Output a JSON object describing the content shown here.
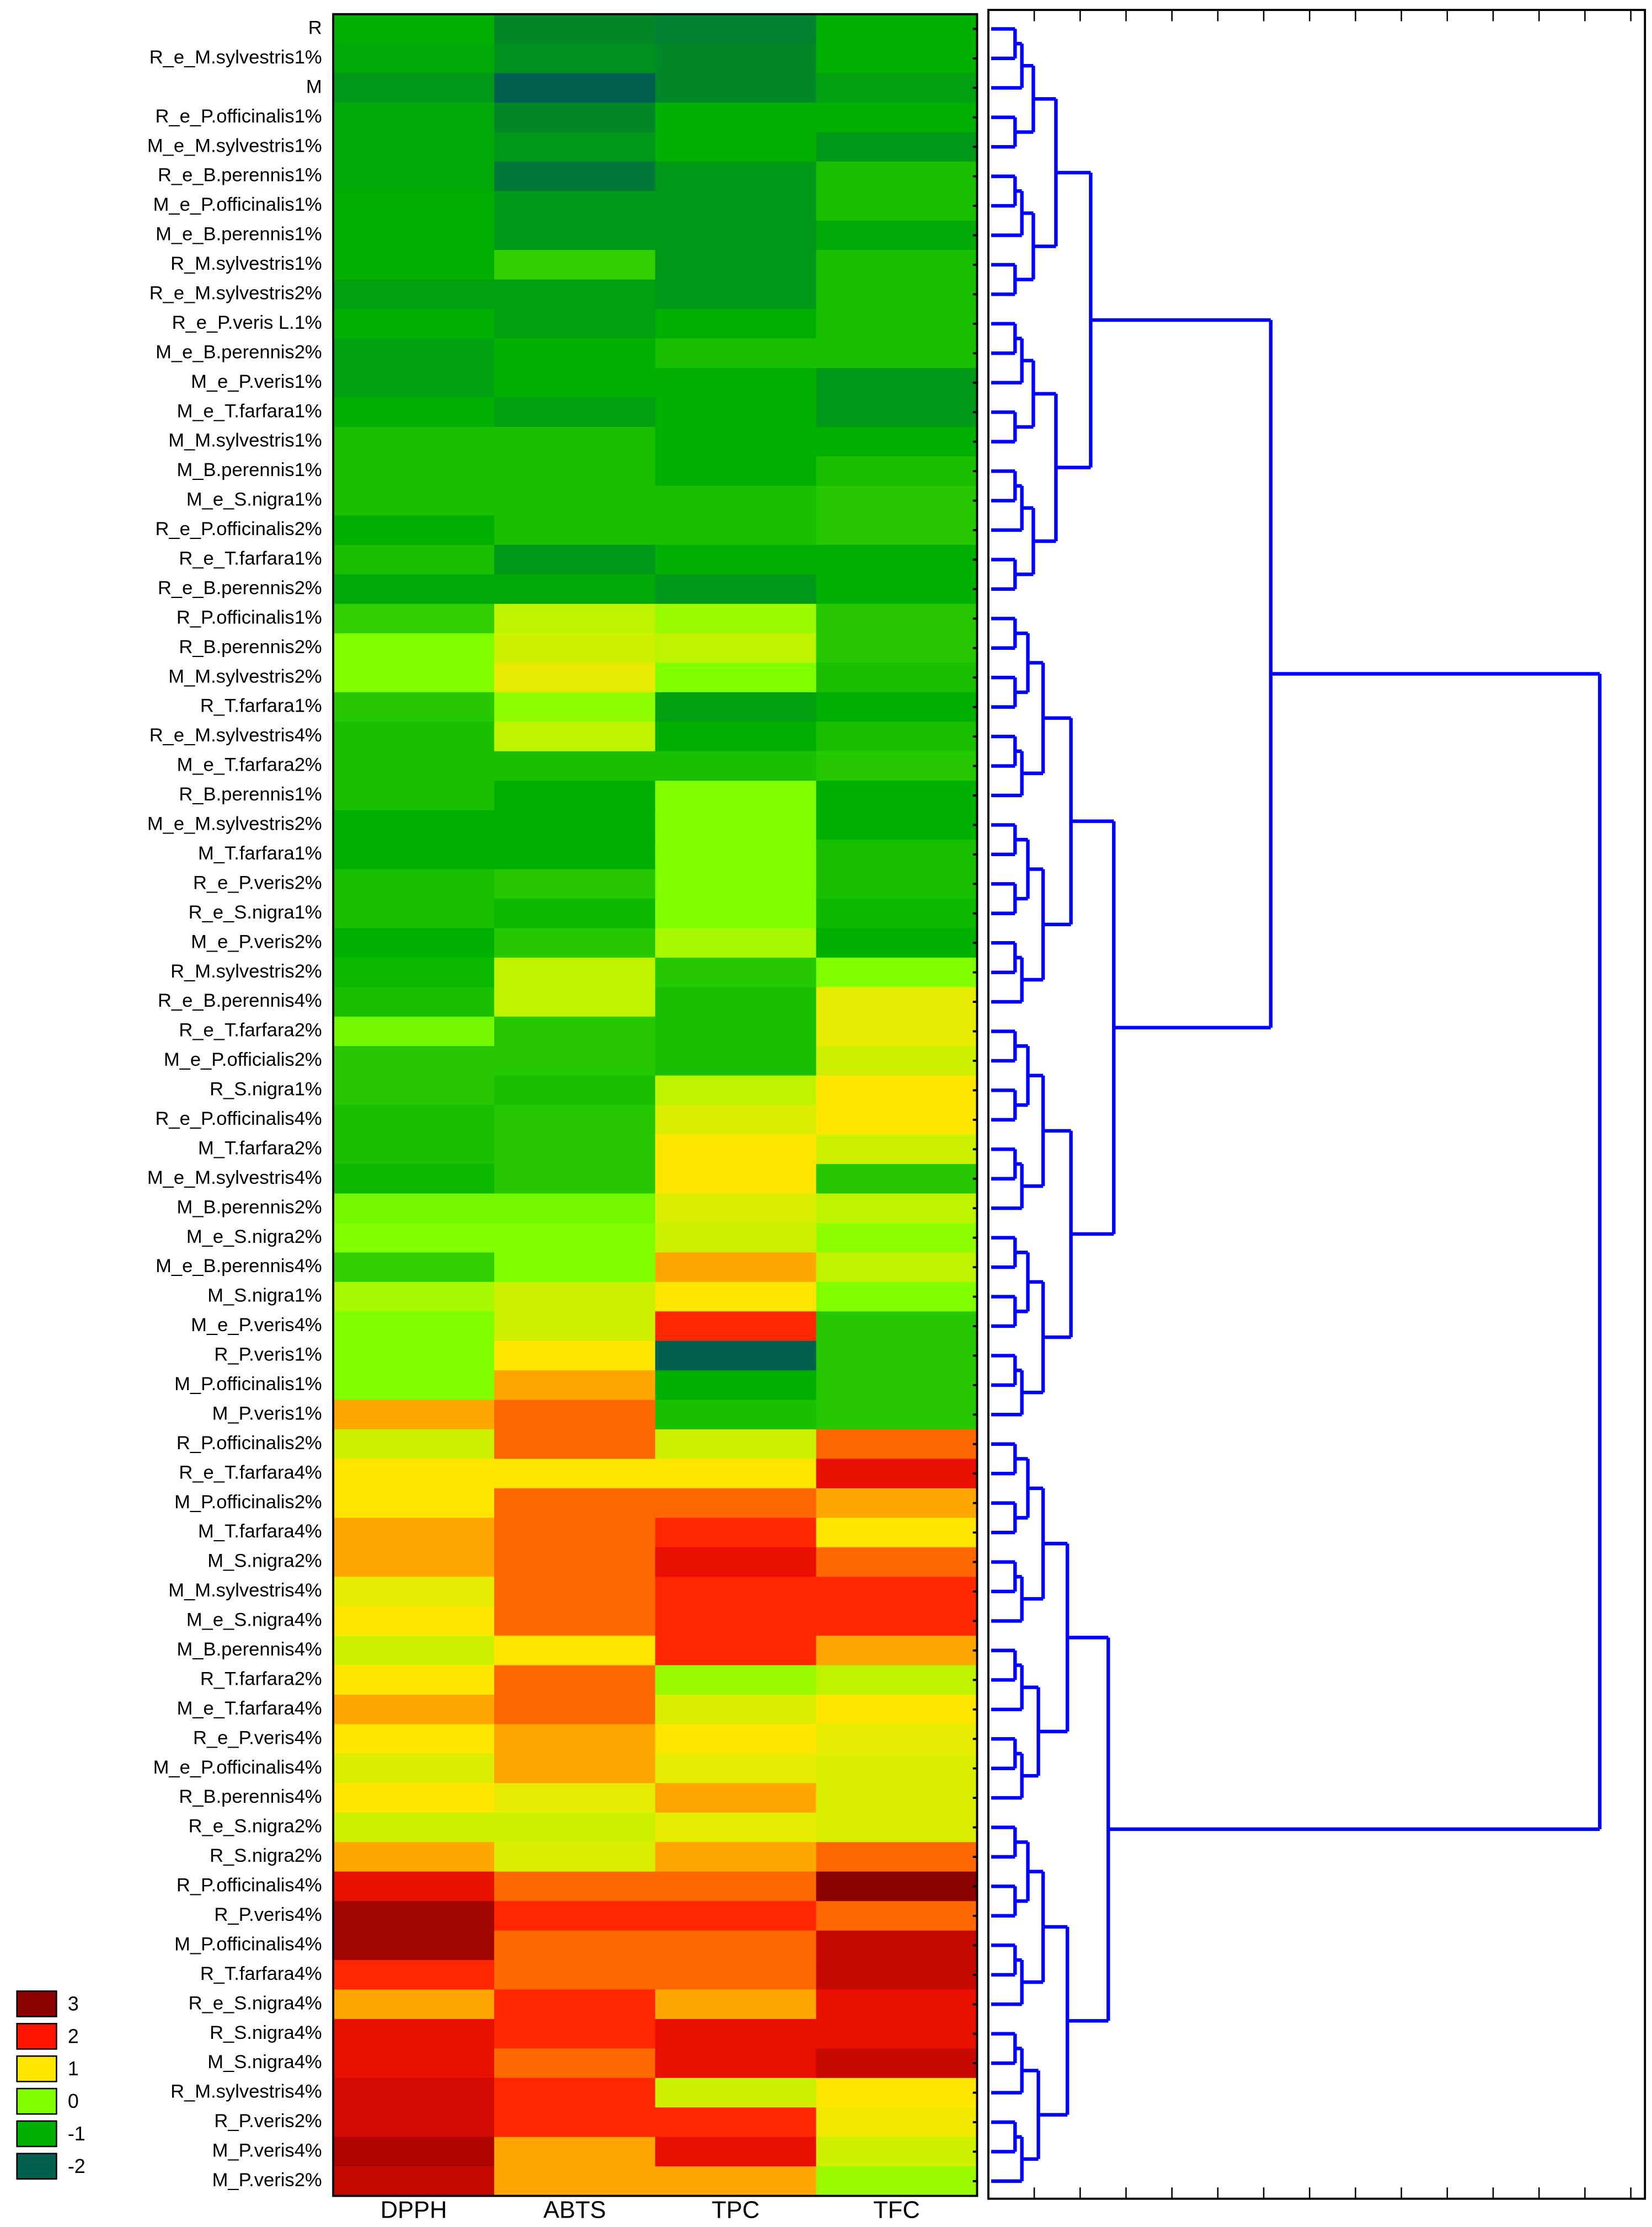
{
  "chart_data": {
    "type": "heatmap",
    "columns": [
      "DPPH",
      "ABTS",
      "TPC",
      "TFC"
    ],
    "rows": [
      "R",
      "R_e_M.sylvestris1%",
      "M",
      "R_e_P.officinalis1%",
      "M_e_M.sylvestris1%",
      "R_e_B.perennis1%",
      "M_e_P.officinalis1%",
      "M_e_B.perennis1%",
      "R_M.sylvestris1%",
      "R_e_M.sylvestris2%",
      "R_e_P.veris L.1%",
      "M_e_B.perennis2%",
      "M_e_P.veris1%",
      "M_e_T.farfara1%",
      "M_M.sylvestris1%",
      "M_B.perennis1%",
      "M_e_S.nigra1%",
      "R_e_P.officinalis2%",
      "R_e_T.farfara1%",
      "R_e_B.perennis2%",
      "R_P.officinalis1%",
      "R_B.perennis2%",
      "M_M.sylvestris2%",
      "R_T.farfara1%",
      "R_e_M.sylvestris4%",
      "M_e_T.farfara2%",
      "R_B.perennis1%",
      "M_e_M.sylvestris2%",
      "M_T.farfara1%",
      "R_e_P.veris2%",
      "R_e_S.nigra1%",
      "M_e_P.veris2%",
      "R_M.sylvestris2%",
      "R_e_B.perennis4%",
      "R_e_T.farfara2%",
      "M_e_P.officialis2%",
      "R_S.nigra1%",
      "R_e_P.officinalis4%",
      "M_T.farfara2%",
      "M_e_M.sylvestris4%",
      "M_B.perennis2%",
      "M_e_S.nigra2%",
      "M_e_B.perennis4%",
      "M_S.nigra1%",
      "M_e_P.veris4%",
      "R_P.veris1%",
      "M_P.officinalis1%",
      "M_P.veris1%",
      "R_P.officinalis2%",
      "R_e_T.farfara4%",
      "M_P.officinalis2%",
      "M_T.farfara4%",
      "M_S.nigra2%",
      "M_M.sylvestris4%",
      "M_e_S.nigra4%",
      "M_B.perennis4%",
      "R_T.farfara2%",
      "M_e_T.farfara4%",
      "R_e_P.veris4%",
      "M_e_P.officinalis4%",
      "R_B.perennis4%",
      "R_e_S.nigra2%",
      "R_S.nigra2%",
      "R_P.officinalis4%",
      "R_P.veris4%",
      "M_P.officinalis4%",
      "R_T.farfara4%",
      "R_e_S.nigra4%",
      "R_S.nigra4%",
      "M_S.nigra4%",
      "R_M.sylvestris4%",
      "R_P.veris2%",
      "M_P.veris4%",
      "M_P.veris2%"
    ],
    "values": [
      [
        -1.0,
        -1.5,
        -1.6,
        -1.0
      ],
      [
        -1.1,
        -1.4,
        -1.5,
        -1.0
      ],
      [
        -1.3,
        -2.0,
        -1.5,
        -1.2
      ],
      [
        -1.1,
        -1.5,
        -1.0,
        -1.0
      ],
      [
        -1.1,
        -1.3,
        -1.0,
        -1.3
      ],
      [
        -1.1,
        -1.7,
        -1.3,
        -0.8
      ],
      [
        -1.0,
        -1.3,
        -1.3,
        -0.8
      ],
      [
        -1.0,
        -1.3,
        -1.3,
        -1.1
      ],
      [
        -1.0,
        -0.6,
        -1.3,
        -0.8
      ],
      [
        -1.2,
        -1.2,
        -1.3,
        -0.8
      ],
      [
        -1.0,
        -1.2,
        -1.0,
        -0.8
      ],
      [
        -1.2,
        -1.0,
        -0.8,
        -0.8
      ],
      [
        -1.2,
        -1.0,
        -1.0,
        -1.3
      ],
      [
        -1.0,
        -1.2,
        -1.0,
        -1.3
      ],
      [
        -0.8,
        -0.8,
        -1.0,
        -1.0
      ],
      [
        -0.8,
        -0.8,
        -1.0,
        -0.8
      ],
      [
        -0.8,
        -0.8,
        -0.8,
        -0.7
      ],
      [
        -1.0,
        -0.8,
        -0.8,
        -0.7
      ],
      [
        -0.8,
        -1.3,
        -1.0,
        -1.0
      ],
      [
        -1.1,
        -1.1,
        -1.3,
        -1.0
      ],
      [
        -0.6,
        0.5,
        0.2,
        -0.7
      ],
      [
        0.0,
        0.6,
        0.5,
        -0.7
      ],
      [
        0.0,
        0.8,
        0.0,
        -0.8
      ],
      [
        -0.7,
        0.1,
        -1.2,
        -1.0
      ],
      [
        -0.8,
        0.5,
        -1.0,
        -0.8
      ],
      [
        -0.8,
        -0.8,
        -0.8,
        -0.7
      ],
      [
        -0.8,
        -1.0,
        0.0,
        -1.0
      ],
      [
        -1.0,
        -1.0,
        0.0,
        -1.0
      ],
      [
        -1.0,
        -1.0,
        0.0,
        -0.8
      ],
      [
        -0.8,
        -0.7,
        0.0,
        -0.8
      ],
      [
        -0.8,
        -0.9,
        0.0,
        -0.9
      ],
      [
        -1.0,
        -0.7,
        0.3,
        -1.0
      ],
      [
        -0.9,
        0.5,
        -0.7,
        0.0
      ],
      [
        -0.8,
        0.5,
        -0.8,
        0.8
      ],
      [
        -0.1,
        -0.7,
        -0.8,
        0.8
      ],
      [
        -0.7,
        -0.7,
        -0.8,
        0.6
      ],
      [
        -0.7,
        -0.8,
        0.5,
        1.0
      ],
      [
        -0.8,
        -0.7,
        0.7,
        1.0
      ],
      [
        -0.8,
        -0.7,
        1.0,
        0.6
      ],
      [
        -0.9,
        -0.7,
        1.0,
        -0.7
      ],
      [
        -0.1,
        -0.1,
        0.7,
        0.5
      ],
      [
        0.0,
        0.0,
        0.6,
        0.1
      ],
      [
        -0.6,
        0.0,
        1.3,
        0.5
      ],
      [
        0.3,
        0.6,
        1.0,
        0.0
      ],
      [
        0.0,
        0.6,
        1.9,
        -0.7
      ],
      [
        0.0,
        1.0,
        -2.0,
        -0.7
      ],
      [
        0.0,
        1.3,
        -1.0,
        -0.7
      ],
      [
        1.3,
        1.6,
        -0.8,
        -0.7
      ],
      [
        0.6,
        1.6,
        0.6,
        1.6
      ],
      [
        1.0,
        1.0,
        1.0,
        2.2
      ],
      [
        1.0,
        1.6,
        1.6,
        1.3
      ],
      [
        1.3,
        1.6,
        1.9,
        1.0
      ],
      [
        1.3,
        1.6,
        2.2,
        1.6
      ],
      [
        0.8,
        1.6,
        1.9,
        1.9
      ],
      [
        1.0,
        1.6,
        1.9,
        1.9
      ],
      [
        0.6,
        1.0,
        1.9,
        1.3
      ],
      [
        1.0,
        1.6,
        0.2,
        0.5
      ],
      [
        1.3,
        1.6,
        0.7,
        1.0
      ],
      [
        1.0,
        1.3,
        1.0,
        0.8
      ],
      [
        0.7,
        1.3,
        0.8,
        0.7
      ],
      [
        1.0,
        0.8,
        1.3,
        0.7
      ],
      [
        0.6,
        0.6,
        0.8,
        0.7
      ],
      [
        1.3,
        0.7,
        1.3,
        1.6
      ],
      [
        2.2,
        1.6,
        1.6,
        3.2
      ],
      [
        2.8,
        1.9,
        1.9,
        1.6
      ],
      [
        2.8,
        1.6,
        1.6,
        2.5
      ],
      [
        1.9,
        1.6,
        1.6,
        2.5
      ],
      [
        1.3,
        1.9,
        1.3,
        2.2
      ],
      [
        2.2,
        1.9,
        2.2,
        2.2
      ],
      [
        2.2,
        1.6,
        2.2,
        2.5
      ],
      [
        2.4,
        1.9,
        0.6,
        1.0
      ],
      [
        2.4,
        1.9,
        1.9,
        0.9
      ],
      [
        2.7,
        1.3,
        2.2,
        0.6
      ],
      [
        2.5,
        1.3,
        1.3,
        0.2
      ]
    ],
    "legend": {
      "values": [
        3,
        2,
        1,
        0,
        -1,
        -2
      ],
      "colors": [
        "#8b0000",
        "#ff1200",
        "#ffe600",
        "#80ff00",
        "#00b000",
        "#006050"
      ]
    }
  }
}
